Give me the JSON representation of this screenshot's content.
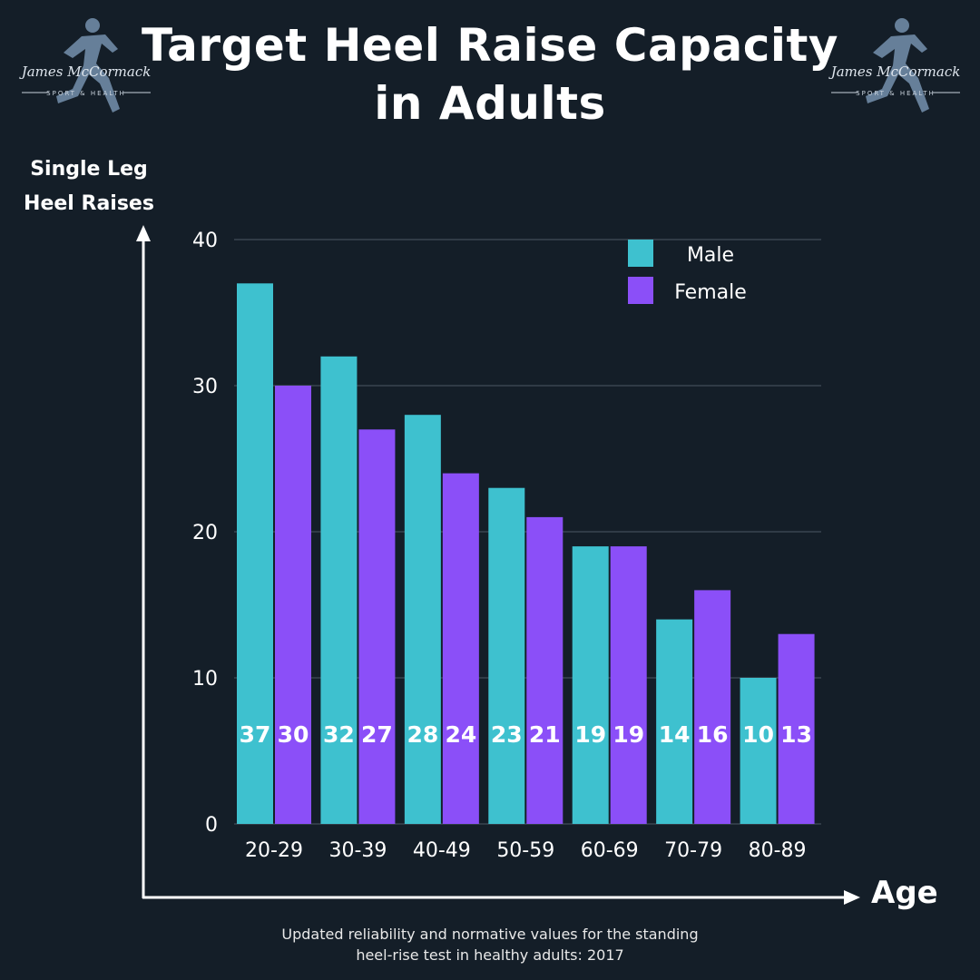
{
  "title_line1": "Target Heel Raise Capacity",
  "title_line2": "in Adults",
  "logo": {
    "name": "James McCormack",
    "tagline": "SPORT & HEALTH"
  },
  "ylabel_line1": "Single Leg",
  "ylabel_line2": "Heel Raises",
  "xlabel": "Age",
  "source_line1": "Updated reliability and normative values for the standing",
  "source_line2": "heel-rise test in healthy adults: 2017",
  "colors": {
    "background": "#141e28",
    "male": "#3ec1cf",
    "female": "#8b4ff8",
    "grid": "#3a4550"
  },
  "chart_data": {
    "type": "bar",
    "categories": [
      "20-29",
      "30-39",
      "40-49",
      "50-59",
      "60-69",
      "70-79",
      "80-89"
    ],
    "series": [
      {
        "name": "Male",
        "values": [
          37,
          32,
          28,
          23,
          19,
          14,
          10
        ]
      },
      {
        "name": "Female",
        "values": [
          30,
          27,
          24,
          21,
          19,
          16,
          13
        ]
      }
    ],
    "yticks": [
      0,
      10,
      20,
      30,
      40
    ],
    "ylim": [
      0,
      40
    ],
    "grid": true,
    "legend": "top-right",
    "data_labels": "inside-bottom"
  }
}
